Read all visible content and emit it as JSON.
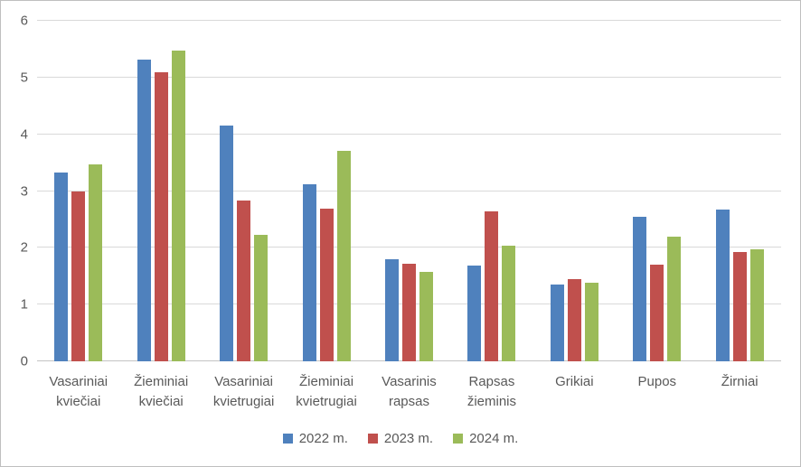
{
  "chart_data": {
    "type": "bar",
    "title": "",
    "xlabel": "",
    "ylabel": "",
    "ylim": [
      0,
      6
    ],
    "yticks": [
      0,
      1,
      2,
      3,
      4,
      5,
      6
    ],
    "grid": true,
    "legend_position": "bottom",
    "categories": [
      "Vasariniai\nkviečiai",
      "Žieminiai\nkviečiai",
      "Vasariniai\nkvietrugiai",
      "Žieminiai\nkvietrugiai",
      "Vasarinis\nrapsas",
      "Rapsas\nžieminis",
      "Grikiai",
      "Pupos",
      "Žirniai"
    ],
    "series": [
      {
        "name": "2022 m.",
        "color": "#4F81BD",
        "values": [
          3.33,
          5.32,
          4.15,
          3.12,
          1.8,
          1.68,
          1.35,
          2.55,
          2.68
        ]
      },
      {
        "name": "2023 m.",
        "color": "#C0504D",
        "values": [
          3.0,
          5.09,
          2.84,
          2.69,
          1.72,
          2.64,
          1.45,
          1.7,
          1.92
        ]
      },
      {
        "name": "2024 m.",
        "color": "#9BBB59",
        "values": [
          3.47,
          5.48,
          2.23,
          3.71,
          1.58,
          2.03,
          1.38,
          2.2,
          1.97
        ]
      }
    ]
  },
  "colors": {
    "gridline": "#D9D9D9",
    "axis_line": "#C3C3C3",
    "text": "#595959",
    "frame_border": "#BFBFBF",
    "background": "#FFFFFF"
  }
}
